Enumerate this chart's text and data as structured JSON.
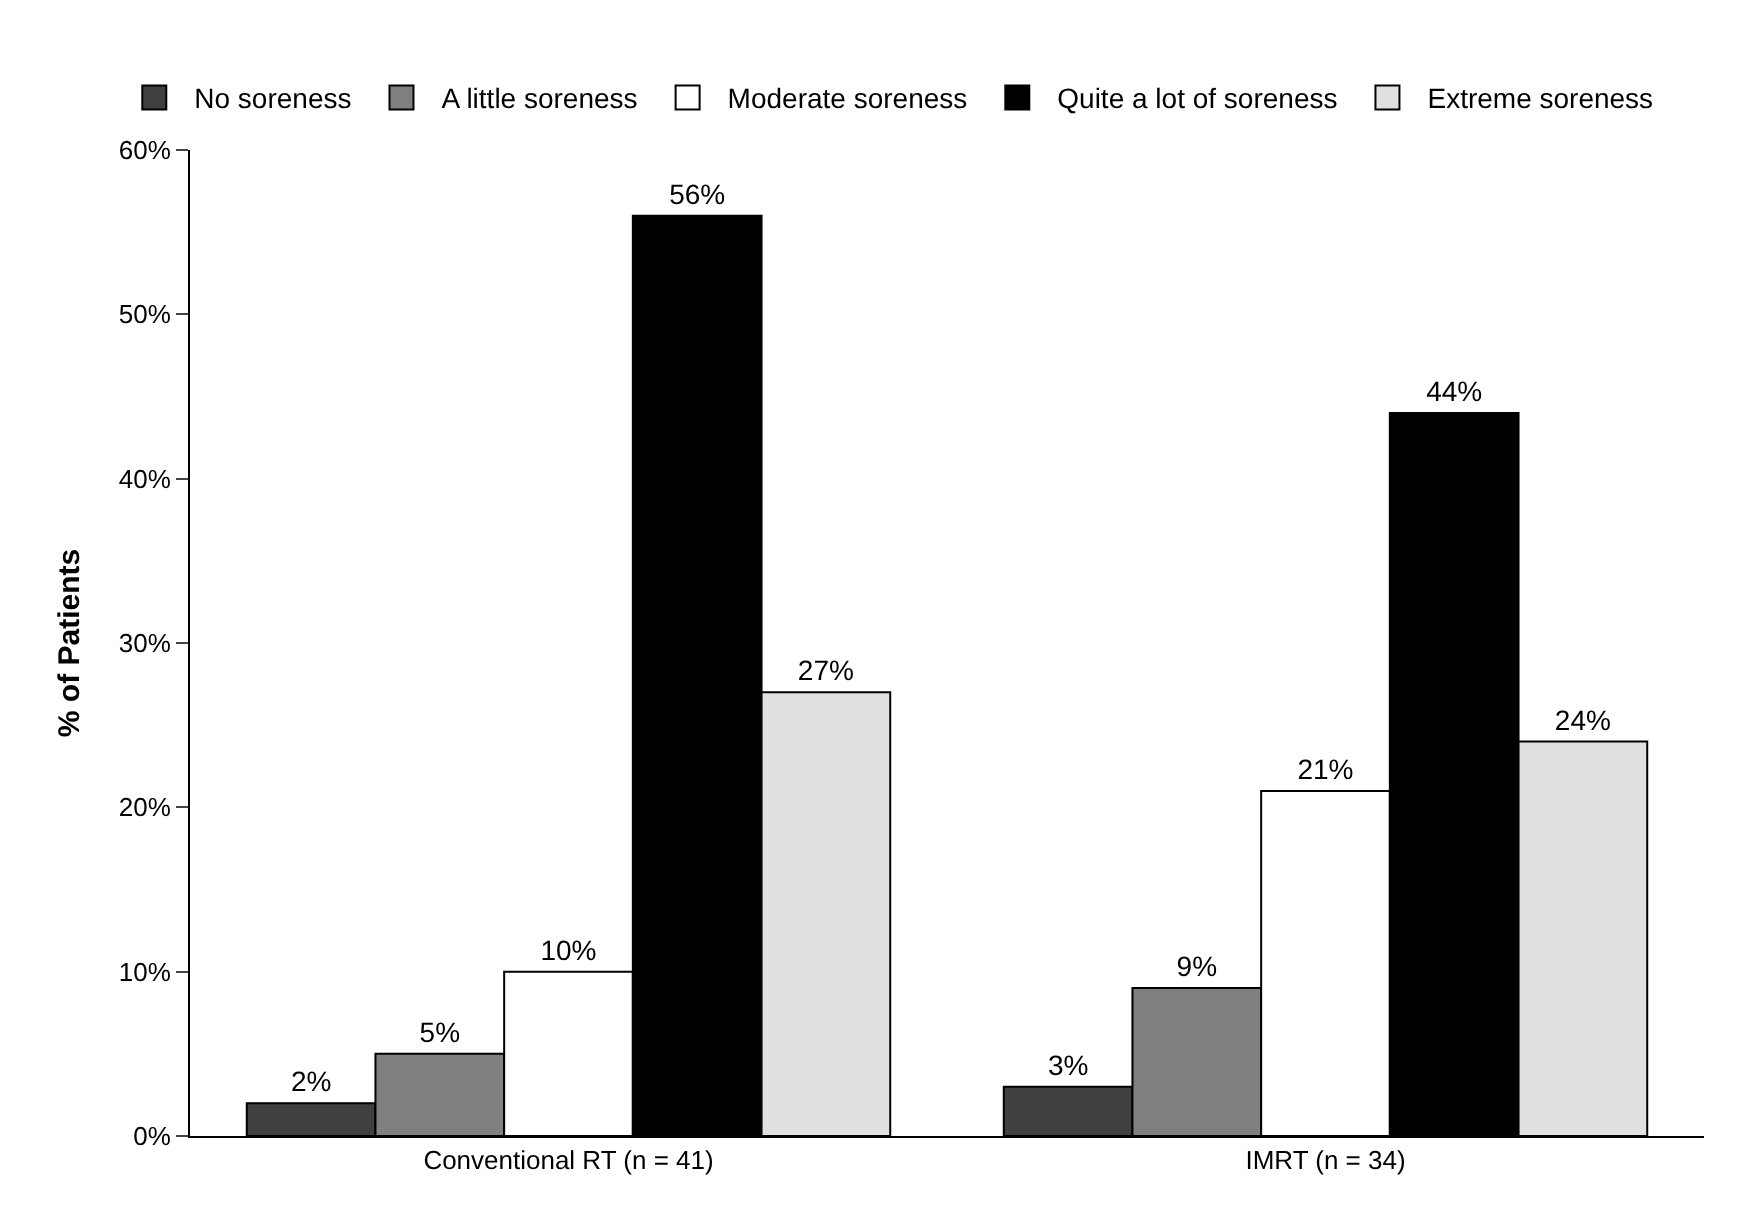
{
  "chart_data": {
    "type": "bar",
    "ylabel": "% of Patients",
    "categories": [
      "Conventional RT (n = 41)",
      "IMRT (n = 34)"
    ],
    "series": [
      {
        "name": "No soreness",
        "color": "#404040",
        "values": [
          2,
          3
        ],
        "value_labels": [
          "2%",
          "3%"
        ]
      },
      {
        "name": "A little soreness",
        "color": "#808080",
        "values": [
          5,
          9
        ],
        "value_labels": [
          "5%",
          "9%"
        ]
      },
      {
        "name": "Moderate soreness",
        "color": "#ffffff",
        "values": [
          10,
          21
        ],
        "value_labels": [
          "10%",
          "21%"
        ]
      },
      {
        "name": "Quite a lot of soreness",
        "color": "#000000",
        "values": [
          56,
          44
        ],
        "value_labels": [
          "56%",
          "44%"
        ]
      },
      {
        "name": "Extreme soreness",
        "color": "#e0e0e0",
        "values": [
          27,
          24
        ],
        "value_labels": [
          "27%",
          "24%"
        ]
      }
    ],
    "ylim": [
      0,
      60
    ],
    "yticks": [
      {
        "value": 0,
        "label": "0%"
      },
      {
        "value": 10,
        "label": "10%"
      },
      {
        "value": 20,
        "label": "20%"
      },
      {
        "value": 30,
        "label": "30%"
      },
      {
        "value": 40,
        "label": "40%"
      },
      {
        "value": 50,
        "label": "50%"
      },
      {
        "value": 60,
        "label": "60%"
      }
    ],
    "legend": "top left"
  }
}
